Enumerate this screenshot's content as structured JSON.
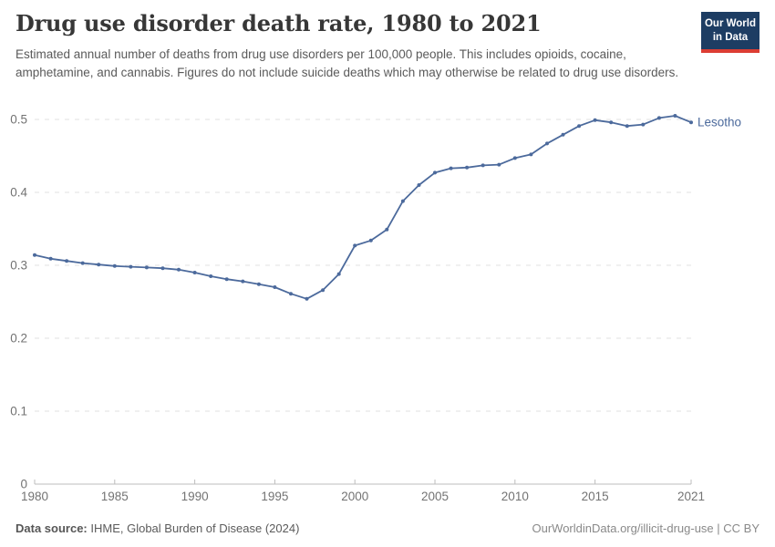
{
  "header": {
    "title": "Drug use disorder death rate, 1980 to 2021",
    "subtitle": "Estimated annual number of deaths from drug use disorders per 100,000 people. This includes opioids, cocaine, amphetamine, and cannabis. Figures do not include suicide deaths which may otherwise be related to drug use disorders."
  },
  "logo": {
    "line1": "Our World",
    "line2": "in Data",
    "bg_color": "#1d3d63",
    "accent_color": "#dc3d33"
  },
  "chart_data": {
    "type": "line",
    "title": "Drug use disorder death rate, 1980 to 2021",
    "x": [
      1980,
      1981,
      1982,
      1983,
      1984,
      1985,
      1986,
      1987,
      1988,
      1989,
      1990,
      1991,
      1992,
      1993,
      1994,
      1995,
      1996,
      1997,
      1998,
      1999,
      2000,
      2001,
      2002,
      2003,
      2004,
      2005,
      2006,
      2007,
      2008,
      2009,
      2010,
      2011,
      2012,
      2013,
      2014,
      2015,
      2016,
      2017,
      2018,
      2019,
      2020,
      2021
    ],
    "series": [
      {
        "name": "Lesotho",
        "color": "#4c6a9c",
        "values": [
          0.314,
          0.309,
          0.306,
          0.303,
          0.301,
          0.299,
          0.298,
          0.297,
          0.296,
          0.294,
          0.29,
          0.285,
          0.281,
          0.278,
          0.274,
          0.27,
          0.261,
          0.254,
          0.266,
          0.288,
          0.327,
          0.334,
          0.349,
          0.388,
          0.41,
          0.427,
          0.433,
          0.434,
          0.437,
          0.438,
          0.447,
          0.452,
          0.467,
          0.479,
          0.491,
          0.499,
          0.496,
          0.491,
          0.493,
          0.502,
          0.505,
          0.496
        ]
      }
    ],
    "xlabel": "",
    "ylabel": "",
    "ylim": [
      0,
      0.5
    ],
    "yticks": [
      0,
      0.1,
      0.2,
      0.3,
      0.4,
      0.5
    ],
    "xticks": [
      1980,
      1985,
      1990,
      1995,
      2000,
      2005,
      2010,
      2015,
      2021
    ],
    "grid": "horizontal-dashed",
    "legend_position": "end-of-line-label",
    "axis_color": "#bdbdbd",
    "grid_color": "#e2e2e2",
    "tick_label_color": "#737373"
  },
  "footer": {
    "source_label": "Data source:",
    "source_text": " IHME, Global Burden of Disease (2024)",
    "link_text": "OurWorldinData.org/illicit-drug-use | CC BY"
  }
}
